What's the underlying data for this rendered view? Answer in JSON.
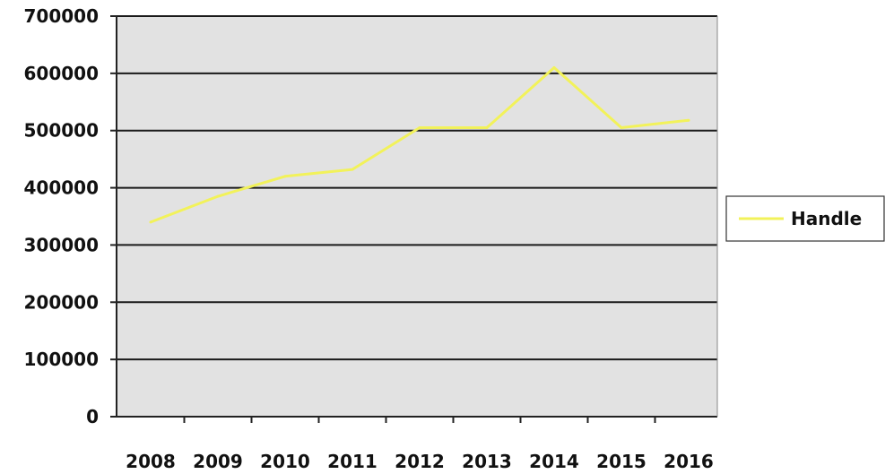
{
  "chart_data": {
    "type": "line",
    "title": "",
    "xlabel": "",
    "ylabel": "",
    "categories": [
      "2008",
      "2009",
      "2010",
      "2011",
      "2012",
      "2013",
      "2014",
      "2015",
      "2016"
    ],
    "series": [
      {
        "name": "Handle",
        "color": "#f2f25a",
        "values": [
          340000,
          385000,
          420000,
          432000,
          505000,
          505000,
          610000,
          505000,
          518000
        ]
      }
    ],
    "ylim": [
      0,
      700000
    ],
    "yticks": [
      0,
      100000,
      200000,
      300000,
      400000,
      500000,
      600000,
      700000
    ],
    "ytick_labels": [
      "0",
      "100000",
      "200000",
      "300000",
      "400000",
      "500000",
      "600000",
      "700000"
    ],
    "grid": true,
    "legend": "right",
    "plot_background": "#e2e2e2"
  }
}
